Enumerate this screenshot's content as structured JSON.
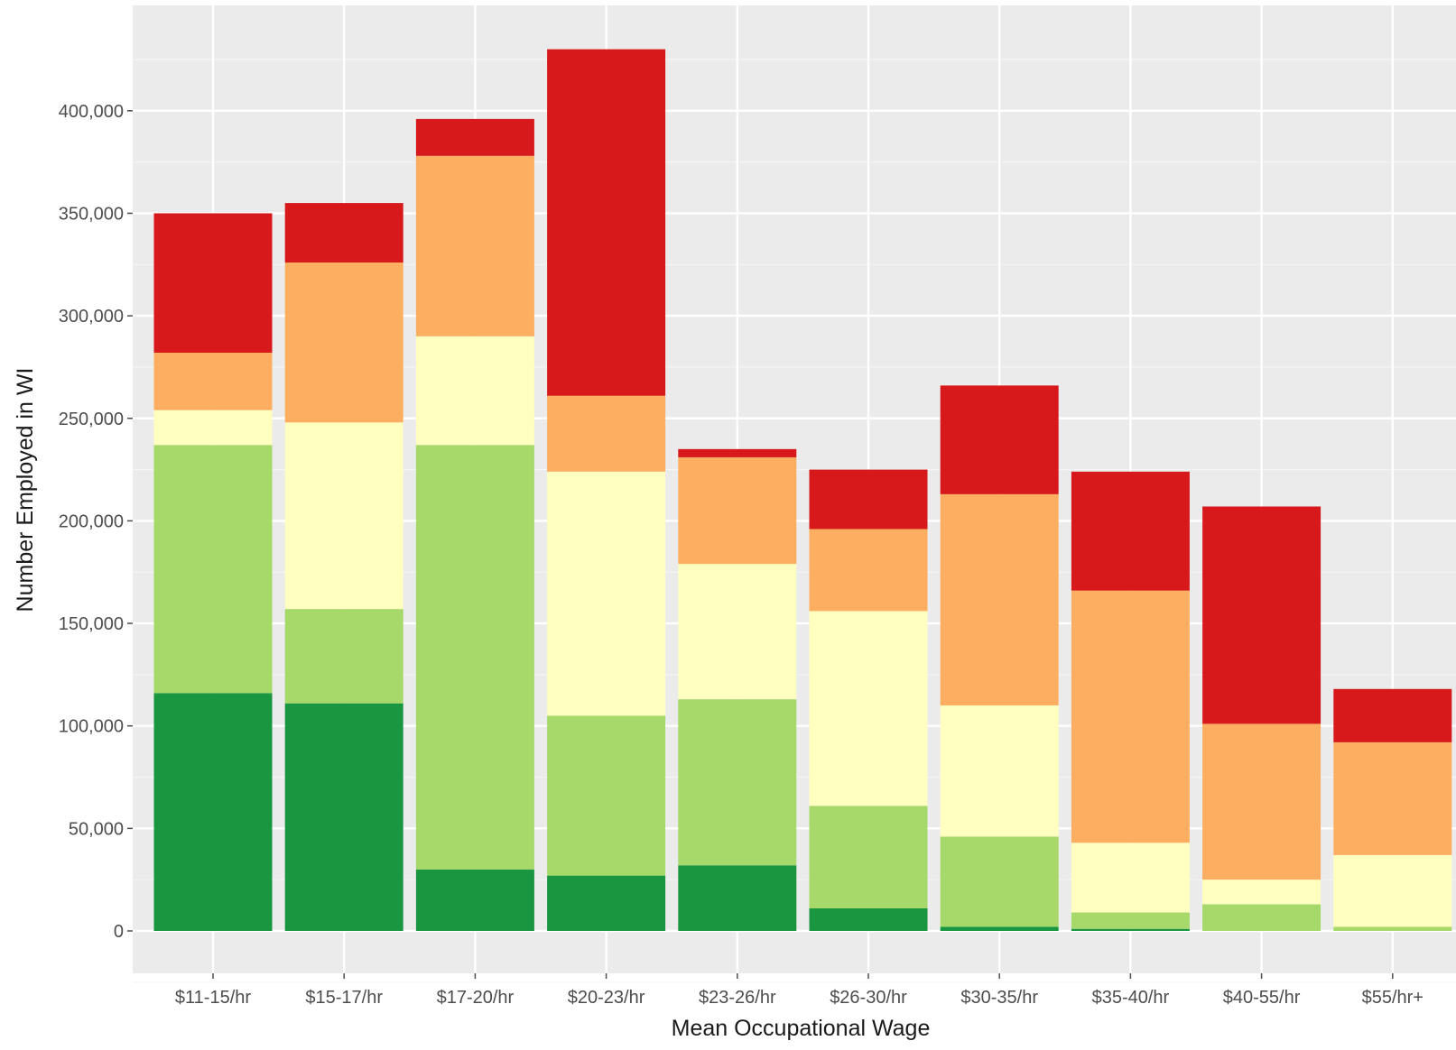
{
  "chart_data": {
    "type": "bar",
    "stacked": true,
    "title": "",
    "xlabel": "Mean Occupational Wage",
    "ylabel": "Number Employed in WI",
    "ylim": [
      -20000,
      445000
    ],
    "grid": true,
    "legend": "none",
    "yticks": [
      0,
      50000,
      100000,
      150000,
      200000,
      250000,
      300000,
      350000,
      400000
    ],
    "ytick_labels": [
      "0",
      "50,000",
      "100,000",
      "150,000",
      "200,000",
      "250,000",
      "300,000",
      "350,000",
      "400,000"
    ],
    "categories": [
      "$11-15/hr",
      "$15-17/hr",
      "$17-20/hr",
      "$20-23/hr",
      "$23-26/hr",
      "$26-30/hr",
      "$30-35/hr",
      "$35-40/hr",
      "$40-55/hr",
      "$55/hr+"
    ],
    "series": [
      {
        "color": "#1a9641",
        "values": [
          116000,
          111000,
          30000,
          27000,
          32000,
          11000,
          2000,
          1000,
          0,
          0
        ]
      },
      {
        "color": "#a6d96a",
        "values": [
          121000,
          46000,
          207000,
          78000,
          81000,
          50000,
          44000,
          8000,
          13000,
          2000
        ]
      },
      {
        "color": "#ffffbf",
        "values": [
          17000,
          91000,
          53000,
          119000,
          66000,
          95000,
          64000,
          34000,
          12000,
          35000
        ]
      },
      {
        "color": "#fdae61",
        "values": [
          28000,
          78000,
          88000,
          37000,
          52000,
          40000,
          103000,
          123000,
          76000,
          55000
        ]
      },
      {
        "color": "#d7191c",
        "values": [
          68000,
          29000,
          18000,
          169000,
          4000,
          29000,
          53000,
          58000,
          106000,
          26000
        ]
      }
    ]
  }
}
